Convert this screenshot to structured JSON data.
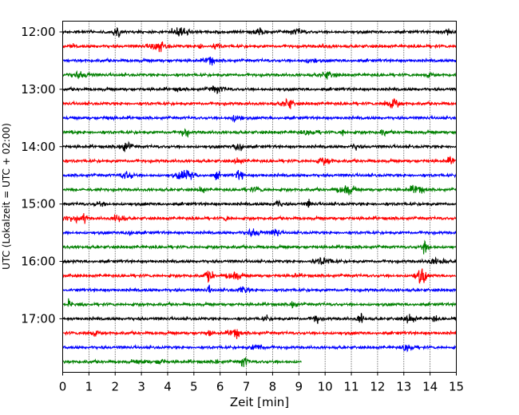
{
  "chart_data": {
    "type": "line",
    "title": "",
    "xlabel": "Zeit  [min]",
    "ylabel": "UTC (Lokalzeit = UTC + 02:00)",
    "xlim": [
      0,
      15
    ],
    "xticks": [
      0,
      1,
      2,
      3,
      4,
      5,
      6,
      7,
      8,
      9,
      10,
      11,
      12,
      13,
      14,
      15
    ],
    "x_tick_labels": [
      "0",
      "1",
      "2",
      "3",
      "4",
      "5",
      "6",
      "7",
      "8",
      "9",
      "10",
      "11",
      "12",
      "13",
      "14",
      "15"
    ],
    "y_tick_labels": [
      "12:00",
      "13:00",
      "14:00",
      "15:00",
      "16:00",
      "17:00"
    ],
    "row_interval_minutes": 15,
    "first_row_time": "12:00",
    "vertical_grid": "dotted",
    "series_colors": [
      "#000000",
      "#ff0000",
      "#0000ff",
      "#008000"
    ],
    "rows": [
      {
        "time": "12:00",
        "color": "#000000",
        "x_end": 15
      },
      {
        "time": "12:15",
        "color": "#ff0000",
        "x_end": 15
      },
      {
        "time": "12:30",
        "color": "#0000ff",
        "x_end": 15
      },
      {
        "time": "12:45",
        "color": "#008000",
        "x_end": 15
      },
      {
        "time": "13:00",
        "color": "#000000",
        "x_end": 15
      },
      {
        "time": "13:15",
        "color": "#ff0000",
        "x_end": 15
      },
      {
        "time": "13:30",
        "color": "#0000ff",
        "x_end": 15
      },
      {
        "time": "13:45",
        "color": "#008000",
        "x_end": 15
      },
      {
        "time": "14:00",
        "color": "#000000",
        "x_end": 15
      },
      {
        "time": "14:15",
        "color": "#ff0000",
        "x_end": 15
      },
      {
        "time": "14:30",
        "color": "#0000ff",
        "x_end": 15
      },
      {
        "time": "14:45",
        "color": "#008000",
        "x_end": 15
      },
      {
        "time": "15:00",
        "color": "#000000",
        "x_end": 15
      },
      {
        "time": "15:15",
        "color": "#ff0000",
        "x_end": 15
      },
      {
        "time": "15:30",
        "color": "#0000ff",
        "x_end": 15
      },
      {
        "time": "15:45",
        "color": "#008000",
        "x_end": 15
      },
      {
        "time": "16:00",
        "color": "#000000",
        "x_end": 15
      },
      {
        "time": "16:15",
        "color": "#ff0000",
        "x_end": 15
      },
      {
        "time": "16:30",
        "color": "#0000ff",
        "x_end": 15
      },
      {
        "time": "16:45",
        "color": "#008000",
        "x_end": 15
      },
      {
        "time": "17:00",
        "color": "#000000",
        "x_end": 15
      },
      {
        "time": "17:15",
        "color": "#ff0000",
        "x_end": 15
      },
      {
        "time": "17:30",
        "color": "#0000ff",
        "x_end": 15
      },
      {
        "time": "17:45",
        "color": "#008000",
        "x_end": 9.1
      }
    ]
  }
}
